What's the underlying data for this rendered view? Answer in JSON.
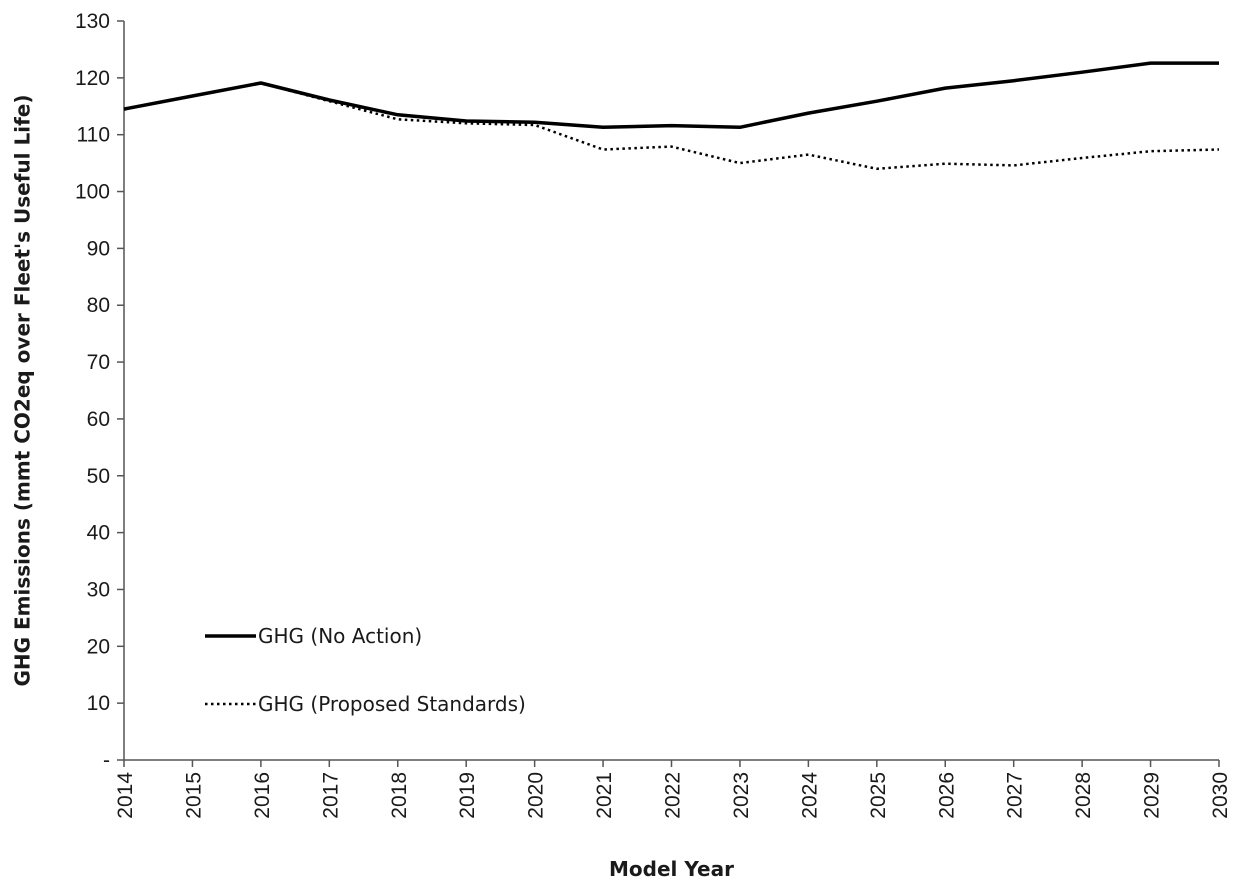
{
  "chart_data": {
    "type": "line",
    "xlabel": "Model Year",
    "ylabel": "GHG Emissions (mmt CO2eq over Fleet's Useful Life)",
    "x": [
      2014,
      2015,
      2016,
      2017,
      2018,
      2019,
      2020,
      2021,
      2022,
      2023,
      2024,
      2025,
      2026,
      2027,
      2028,
      2029,
      2030
    ],
    "x_tick_labels": [
      "2014",
      "2015",
      "2016",
      "2017",
      "2018",
      "2019",
      "2020",
      "2021",
      "2022",
      "2023",
      "2024",
      "2025",
      "2026",
      "2027",
      "2028",
      "2029",
      "2030"
    ],
    "ylim": [
      0,
      130
    ],
    "y_ticks": [
      0,
      10,
      20,
      30,
      40,
      50,
      60,
      70,
      80,
      90,
      100,
      110,
      120,
      130
    ],
    "y_tick_labels": [
      "-",
      "10",
      "20",
      "30",
      "40",
      "50",
      "60",
      "70",
      "80",
      "90",
      "100",
      "110",
      "120",
      "130"
    ],
    "grid": false,
    "legend_position": "bottom-left",
    "series": [
      {
        "name": "GHG (No Action)",
        "style": "solid",
        "color": "#000000",
        "values": [
          114.5,
          116.8,
          119.1,
          116.1,
          113.5,
          112.4,
          112.2,
          111.3,
          111.6,
          111.3,
          113.8,
          115.9,
          118.2,
          119.5,
          121.0,
          122.6,
          122.6
        ]
      },
      {
        "name": "GHG (Proposed Standards)",
        "style": "dotted",
        "color": "#000000",
        "values": [
          114.5,
          116.8,
          119.1,
          115.9,
          112.7,
          112.0,
          111.7,
          107.4,
          107.9,
          105.0,
          106.5,
          104.0,
          104.9,
          104.6,
          105.9,
          107.1,
          107.4
        ]
      }
    ]
  }
}
